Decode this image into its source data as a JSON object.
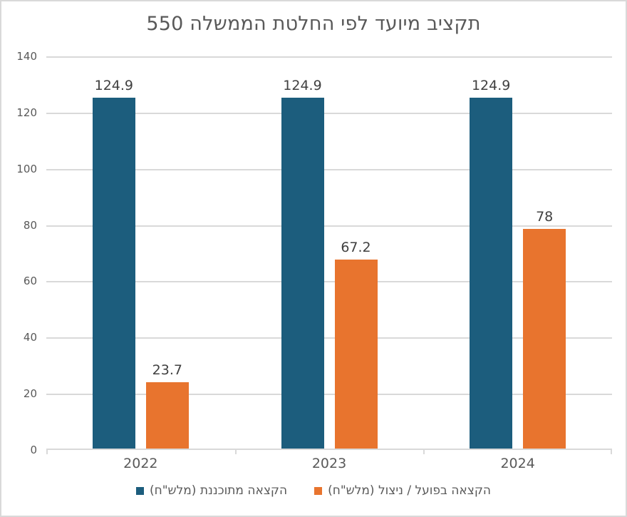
{
  "title": "תקציב מיועד לפי החלטת הממשלה 550",
  "chart_data": {
    "type": "bar",
    "title": "תקציב מיועד לפי החלטת הממשלה 550",
    "direction": "rtl",
    "categories": [
      "2022",
      "2023",
      "2024"
    ],
    "series": [
      {
        "name": "הקצאה מתוכננת  (מלש\"ח)",
        "color": "#1c5d7d",
        "values": [
          124.9,
          124.9,
          124.9
        ],
        "value_labels": [
          "124.9",
          "124.9",
          "124.9"
        ]
      },
      {
        "name": "הקצאה בפועל / ניצול (מלש\"ח)",
        "color": "#e8742e",
        "values": [
          23.7,
          67.2,
          78
        ],
        "value_labels": [
          "23.7",
          "67.2",
          "78"
        ]
      }
    ],
    "xlabel": "",
    "ylabel": "",
    "ylim": [
      0,
      140
    ],
    "yticks": [
      0,
      20,
      40,
      60,
      80,
      100,
      120,
      140
    ],
    "grid": true,
    "data_labels": true,
    "legend_position": "bottom",
    "legend_visual_order_right_to_left": [
      "הקצאה בפועל / ניצול (מלש\"ח)",
      "הקצאה מתוכננת  (מלש\"ח)"
    ]
  },
  "colors": {
    "planned_series": "#1c5d7d",
    "actual_series": "#e8742e",
    "gridline": "#d9d9d9",
    "axis_line": "#d9d9d9",
    "title_text": "#595959",
    "axis_text": "#595959",
    "data_label_text": "#404040",
    "frame_border": "#d9d9d9",
    "background": "#ffffff"
  }
}
